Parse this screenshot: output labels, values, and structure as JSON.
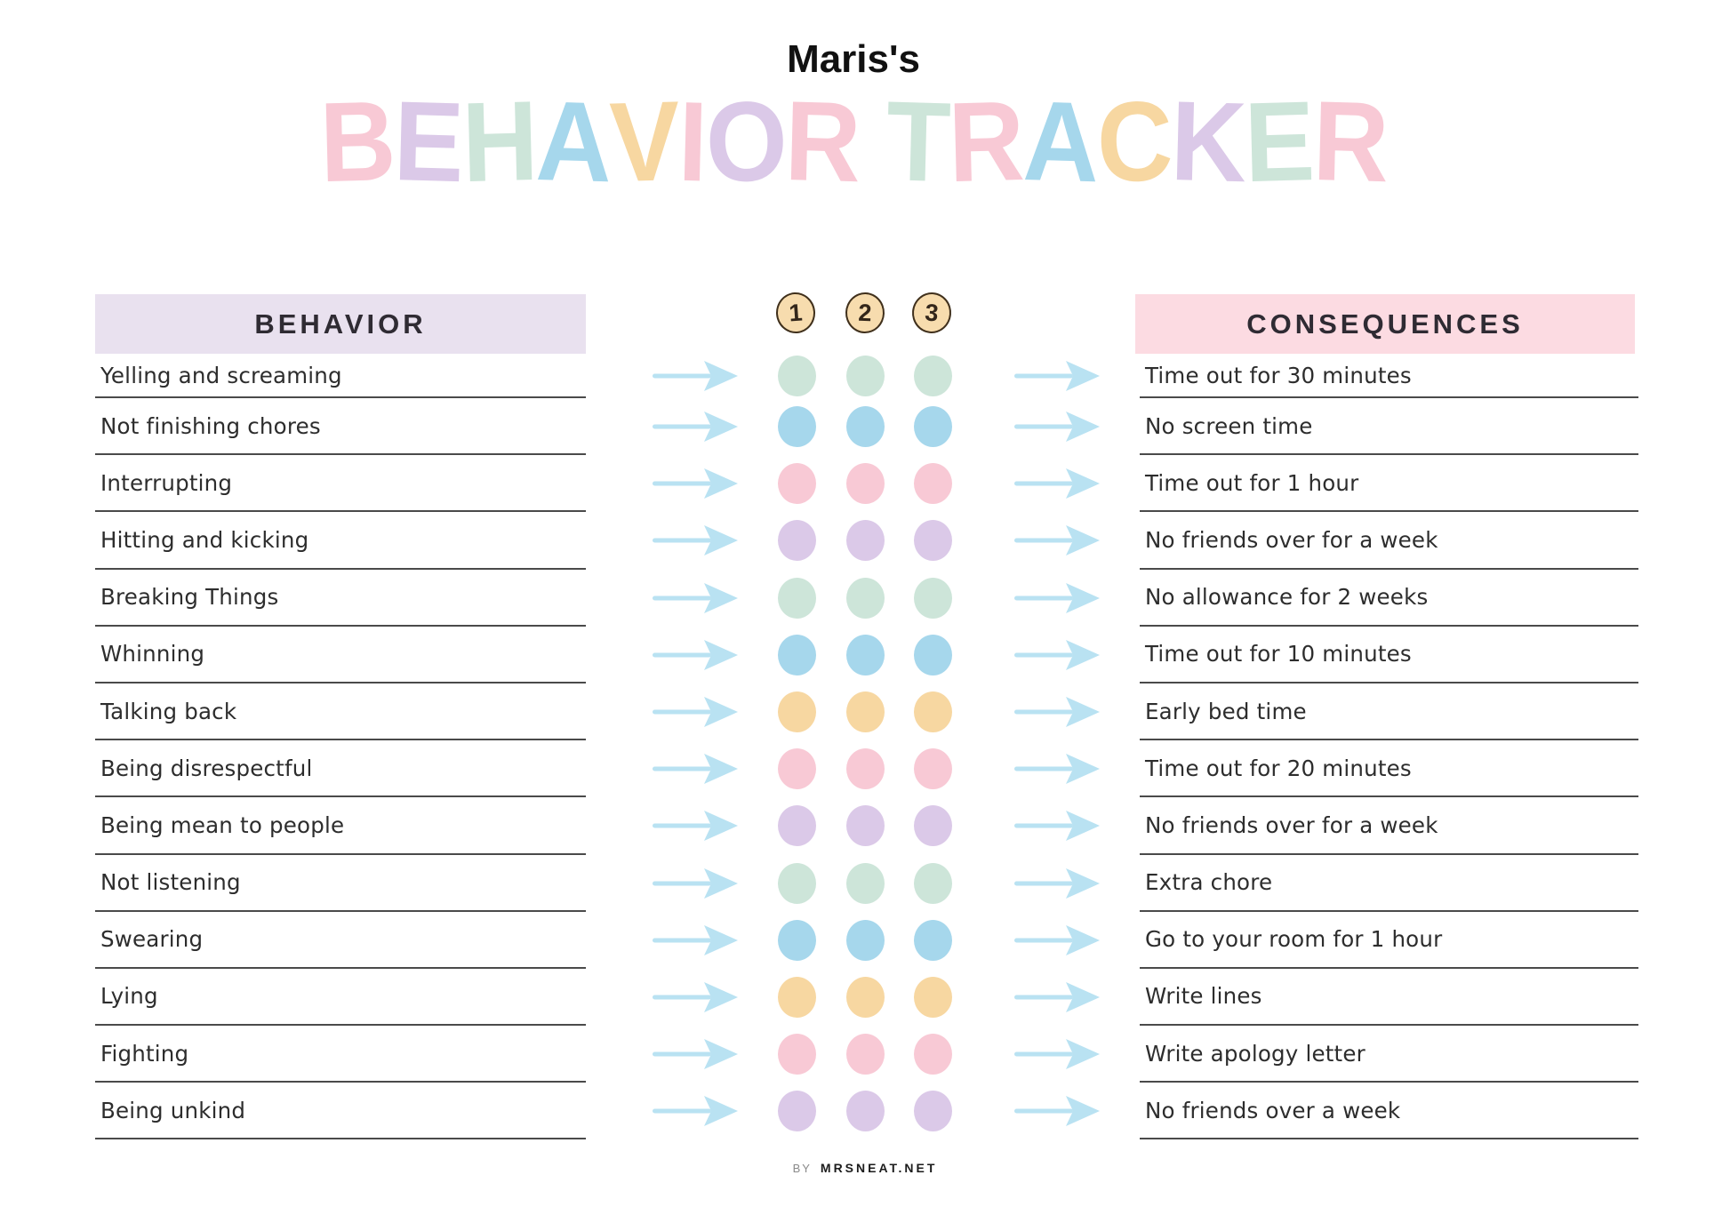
{
  "page": {
    "child_name": "Maris's"
  },
  "main_title": {
    "letters": [
      {
        "ch": "B",
        "color": "pink"
      },
      {
        "ch": "E",
        "color": "lavender"
      },
      {
        "ch": "H",
        "color": "mint"
      },
      {
        "ch": "A",
        "color": "blue"
      },
      {
        "ch": "V",
        "color": "peach"
      },
      {
        "ch": "I",
        "color": "pink"
      },
      {
        "ch": "O",
        "color": "lavender"
      },
      {
        "ch": "R",
        "color": "pink"
      },
      {
        "ch": " ",
        "color": ""
      },
      {
        "ch": "T",
        "color": "mint"
      },
      {
        "ch": "R",
        "color": "pink"
      },
      {
        "ch": "A",
        "color": "blue"
      },
      {
        "ch": "C",
        "color": "peach"
      },
      {
        "ch": "K",
        "color": "lavender"
      },
      {
        "ch": "E",
        "color": "mint"
      },
      {
        "ch": "R",
        "color": "pink"
      }
    ]
  },
  "headers": {
    "behavior": "BEHAVIOR",
    "consequences": "CONSEQUENCES",
    "counts": [
      "1",
      "2",
      "3"
    ]
  },
  "rows": [
    {
      "behavior": "Yelling and screaming",
      "dot_color": "mint",
      "consequence": "Time out for 30 minutes"
    },
    {
      "behavior": "Not finishing chores",
      "dot_color": "blue",
      "consequence": "No screen time"
    },
    {
      "behavior": "Interrupting",
      "dot_color": "pink",
      "consequence": "Time out for 1 hour"
    },
    {
      "behavior": "Hitting and kicking",
      "dot_color": "lavender",
      "consequence": "No friends over for a week"
    },
    {
      "behavior": "Breaking Things",
      "dot_color": "mint",
      "consequence": "No allowance for 2 weeks"
    },
    {
      "behavior": "Whinning",
      "dot_color": "blue",
      "consequence": "Time out for 10 minutes"
    },
    {
      "behavior": "Talking back",
      "dot_color": "peach",
      "consequence": "Early bed time"
    },
    {
      "behavior": "Being disrespectful",
      "dot_color": "pink",
      "consequence": "Time out for 20 minutes"
    },
    {
      "behavior": "Being mean to people",
      "dot_color": "lavender",
      "consequence": "No friends over for a week"
    },
    {
      "behavior": "Not listening",
      "dot_color": "mint",
      "consequence": "Extra chore"
    },
    {
      "behavior": "Swearing",
      "dot_color": "blue",
      "consequence": "Go to your room for 1 hour"
    },
    {
      "behavior": "Lying",
      "dot_color": "peach",
      "consequence": "Write lines"
    },
    {
      "behavior": "Fighting",
      "dot_color": "pink",
      "consequence": "Write apology letter"
    },
    {
      "behavior": "Being unkind",
      "dot_color": "lavender",
      "consequence": "No friends over a week"
    }
  ],
  "footer": {
    "by": "BY",
    "site": "MRSNEAT.NET"
  },
  "colors": {
    "pink": "#f8c9d5",
    "lavender": "#dbc9e8",
    "mint": "#cde5d9",
    "blue": "#a6d7ec",
    "peach": "#f7d7a1",
    "arrow": "#b9e2f2",
    "behavior_bar_bg": "#e9e1ef",
    "consequences_bar_bg": "#fcdbe2",
    "circle_bg": "#f7dcae",
    "circle_border": "#40301c",
    "line": "#4a4a4a",
    "text": "#2d2d2d"
  }
}
